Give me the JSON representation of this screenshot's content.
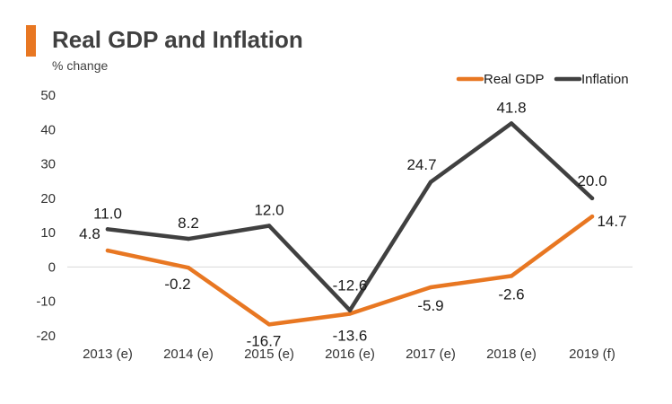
{
  "header": {
    "title": "Real GDP and Inflation",
    "unit": "% change"
  },
  "chart_data": {
    "type": "line",
    "title": "Real GDP and Inflation",
    "ylabel": "% change",
    "xlabel": "",
    "categories": [
      "2013 (e)",
      "2014 (e)",
      "2015 (e)",
      "2016 (e)",
      "2017 (e)",
      "2018 (e)",
      "2019 (f)"
    ],
    "ylim": [
      -20,
      50
    ],
    "yticks": [
      50,
      40,
      30,
      20,
      10,
      0,
      -10,
      -20
    ],
    "legend_position": "top-right",
    "grid": false,
    "series": [
      {
        "name": "Real GDP",
        "color": "#e87722",
        "values": [
          4.8,
          -0.2,
          -16.7,
          -13.6,
          -5.9,
          -2.6,
          14.7
        ],
        "labels": [
          "4.8",
          "-0.2",
          "-16.7",
          "-13.6",
          "-5.9",
          "-2.6",
          "14.7"
        ]
      },
      {
        "name": "Inflation",
        "color": "#404040",
        "values": [
          11.0,
          8.2,
          12.0,
          -12.6,
          24.7,
          41.8,
          20.0
        ],
        "labels": [
          "11.0",
          "8.2",
          "12.0",
          "-12.6",
          "24.7",
          "41.8",
          "20.0"
        ]
      }
    ]
  }
}
